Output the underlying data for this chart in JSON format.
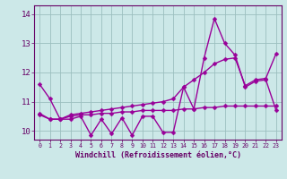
{
  "xlabel": "Windchill (Refroidissement éolien,°C)",
  "x": [
    0,
    1,
    2,
    3,
    4,
    5,
    6,
    7,
    8,
    9,
    10,
    11,
    12,
    13,
    14,
    15,
    16,
    17,
    18,
    19,
    20,
    21,
    22,
    23
  ],
  "line_zigzag": [
    11.6,
    11.1,
    10.4,
    10.4,
    10.5,
    9.85,
    10.4,
    9.9,
    10.45,
    9.85,
    10.5,
    10.5,
    9.95,
    9.95,
    11.5,
    10.75,
    12.5,
    13.85,
    13.0,
    12.6,
    11.5,
    11.7,
    11.75,
    10.7
  ],
  "line_mid": [
    10.55,
    10.4,
    10.4,
    10.55,
    10.6,
    10.65,
    10.7,
    10.75,
    10.8,
    10.85,
    10.9,
    10.95,
    11.0,
    11.1,
    11.5,
    11.75,
    12.0,
    12.3,
    12.45,
    12.5,
    11.55,
    11.75,
    11.8,
    12.65
  ],
  "line_flat": [
    10.6,
    10.4,
    10.4,
    10.5,
    10.55,
    10.55,
    10.6,
    10.6,
    10.65,
    10.65,
    10.7,
    10.7,
    10.7,
    10.7,
    10.75,
    10.75,
    10.8,
    10.8,
    10.85,
    10.85,
    10.85,
    10.85,
    10.85,
    10.85
  ],
  "ylim": [
    9.7,
    14.3
  ],
  "xlim": [
    -0.5,
    23.5
  ],
  "line_color": "#990099",
  "bg_color": "#cce8e8",
  "grid_color": "#9bbfbf",
  "tick_color": "#660066",
  "label_color": "#660066",
  "marker": "D",
  "markersize": 2.5,
  "linewidth": 1.0,
  "yticks": [
    10,
    11,
    12,
    13,
    14
  ],
  "xticks": [
    0,
    1,
    2,
    3,
    4,
    5,
    6,
    7,
    8,
    9,
    10,
    11,
    12,
    13,
    14,
    15,
    16,
    17,
    18,
    19,
    20,
    21,
    22,
    23
  ]
}
